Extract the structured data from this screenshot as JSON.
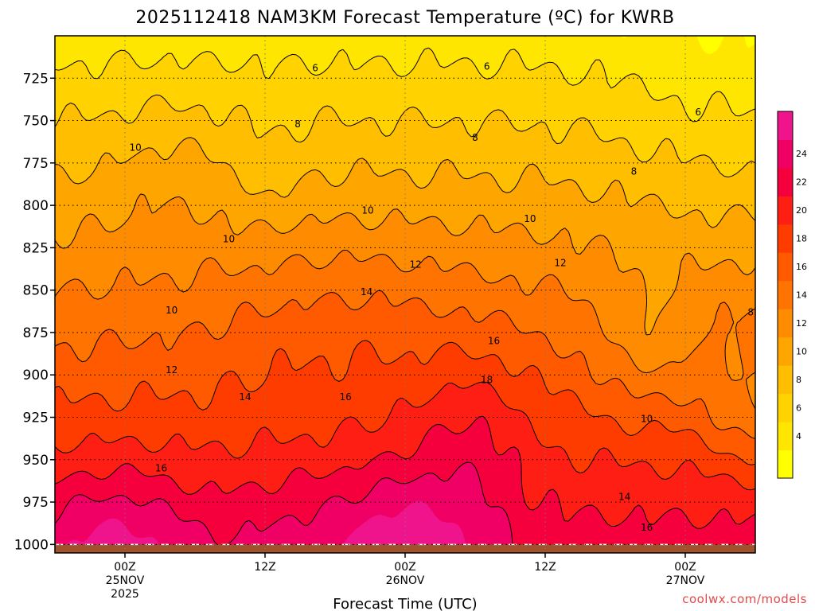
{
  "chart_data": {
    "type": "heatmap",
    "title": "2025112418 NAM3KM Forecast Temperature (ºC) for KWRB",
    "xlabel": "Forecast Time (UTC)",
    "ylabel": "",
    "credit": "coolwx.com/models",
    "y_axis": {
      "quantity": "pressure (hPa)",
      "ticks": [
        725,
        750,
        775,
        800,
        825,
        850,
        875,
        900,
        925,
        950,
        975,
        1000
      ],
      "range": [
        700,
        1005
      ],
      "inverted": true,
      "grid": true
    },
    "x_axis": {
      "ticks": [
        {
          "line1": "00Z",
          "line2": "25NOV",
          "line3": "2025",
          "hour": 6
        },
        {
          "line1": "12Z",
          "line2": "",
          "line3": "",
          "hour": 18
        },
        {
          "line1": "00Z",
          "line2": "26NOV",
          "line3": "",
          "hour": 30
        },
        {
          "line1": "12Z",
          "line2": "",
          "line3": "",
          "hour": 42
        },
        {
          "line1": "00Z",
          "line2": "27NOV",
          "line3": "",
          "hour": 54
        }
      ],
      "range_hours": [
        0,
        60
      ],
      "grid": true
    },
    "colorbar": {
      "levels": [
        2,
        4,
        6,
        8,
        10,
        12,
        14,
        16,
        18,
        20,
        22,
        24,
        26
      ],
      "labels": [
        "4",
        "6",
        "8",
        "10",
        "12",
        "14",
        "16",
        "18",
        "20",
        "22",
        "24"
      ],
      "colors": [
        "#ffff00",
        "#ffe600",
        "#ffd200",
        "#ffbe00",
        "#ffa500",
        "#ff8c00",
        "#ff7300",
        "#ff5a00",
        "#ff3c00",
        "#ff1e14",
        "#f5003c",
        "#f00064",
        "#f0148c"
      ],
      "placement": "right"
    },
    "ground_color": "#a0522d",
    "surface_hpa": 1000,
    "contour_labels": [
      {
        "text": "6",
        "hour": 22.3,
        "hpa": 719
      },
      {
        "text": "6",
        "hour": 37.0,
        "hpa": 718
      },
      {
        "text": "6",
        "hour": 55.1,
        "hpa": 745
      },
      {
        "text": "8",
        "hour": 20.8,
        "hpa": 752
      },
      {
        "text": "8",
        "hour": 36.0,
        "hpa": 760
      },
      {
        "text": "8",
        "hour": 49.6,
        "hpa": 780
      },
      {
        "text": "8",
        "hour": 59.6,
        "hpa": 863
      },
      {
        "text": "10",
        "hour": 6.9,
        "hpa": 766
      },
      {
        "text": "10",
        "hour": 26.8,
        "hpa": 803
      },
      {
        "text": "10",
        "hour": 40.7,
        "hpa": 808
      },
      {
        "text": "10",
        "hour": 14.9,
        "hpa": 820
      },
      {
        "text": "10",
        "hour": 10.0,
        "hpa": 862
      },
      {
        "text": "10",
        "hour": 50.7,
        "hpa": 926
      },
      {
        "text": "12",
        "hour": 30.9,
        "hpa": 835
      },
      {
        "text": "12",
        "hour": 43.3,
        "hpa": 834
      },
      {
        "text": "12",
        "hour": 10.0,
        "hpa": 897
      },
      {
        "text": "14",
        "hour": 26.7,
        "hpa": 851
      },
      {
        "text": "14",
        "hour": 16.3,
        "hpa": 913
      },
      {
        "text": "14",
        "hour": 48.8,
        "hpa": 972
      },
      {
        "text": "16",
        "hour": 37.6,
        "hpa": 880
      },
      {
        "text": "16",
        "hour": 24.9,
        "hpa": 913
      },
      {
        "text": "16",
        "hour": 9.1,
        "hpa": 955
      },
      {
        "text": "16",
        "hour": 50.7,
        "hpa": 990
      },
      {
        "text": "18",
        "hour": 37.0,
        "hpa": 903
      }
    ]
  }
}
